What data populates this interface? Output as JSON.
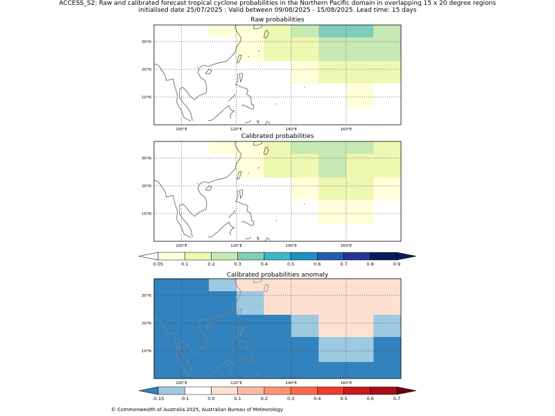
{
  "header": {
    "line1": "ACCESS_S2: Raw and calibrated forecast tropical cyclone probabilities in the Northern Pacific domain in overlapping 15 x 20 degree regions",
    "line2": "initialised date 25/07/2025 :  Valid between 09/08/2025 - 15/08/2025. Lead time: 15 days"
  },
  "copyright": "© Commonwealth of Australia 2025, Australian Bureau of Meteorology",
  "chart_data": [
    {
      "type": "heatmap",
      "title": "Raw probabilities",
      "lon_range": [
        90,
        180
      ],
      "lat_range": [
        0,
        36
      ],
      "x_ticks": [
        100,
        120,
        140,
        160
      ],
      "x_tick_labels": [
        "100°E",
        "120°E",
        "140°E",
        "160°E"
      ],
      "y_ticks": [
        10,
        20,
        30
      ],
      "y_tick_labels": [
        "10°N",
        "20°N",
        "30°N"
      ],
      "grid": true,
      "cells": [
        {
          "lon": [
            110,
            120
          ],
          "lat": [
            31.5,
            36
          ],
          "v": 0.07
        },
        {
          "lon": [
            120,
            130
          ],
          "lat": [
            31.5,
            36
          ],
          "v": 0.07
        },
        {
          "lon": [
            130,
            140
          ],
          "lat": [
            31.5,
            36
          ],
          "v": 0.12
        },
        {
          "lon": [
            140,
            150
          ],
          "lat": [
            31.5,
            36
          ],
          "v": 0.25
        },
        {
          "lon": [
            150,
            160
          ],
          "lat": [
            31.5,
            36
          ],
          "v": 0.33
        },
        {
          "lon": [
            160,
            170
          ],
          "lat": [
            31.5,
            36
          ],
          "v": 0.33
        },
        {
          "lon": [
            170,
            180
          ],
          "lat": [
            31.5,
            36
          ],
          "v": 0.23
        },
        {
          "lon": [
            120,
            130
          ],
          "lat": [
            23,
            31.5
          ],
          "v": 0.07
        },
        {
          "lon": [
            130,
            140
          ],
          "lat": [
            23,
            31.5
          ],
          "v": 0.13
        },
        {
          "lon": [
            140,
            150
          ],
          "lat": [
            23,
            31.5
          ],
          "v": 0.14
        },
        {
          "lon": [
            150,
            180
          ],
          "lat": [
            23,
            31.5
          ],
          "v": 0.23
        },
        {
          "lon": [
            140,
            150
          ],
          "lat": [
            15,
            23
          ],
          "v": 0.07
        },
        {
          "lon": [
            150,
            180
          ],
          "lat": [
            15,
            23
          ],
          "v": 0.13
        },
        {
          "lon": [
            160,
            170
          ],
          "lat": [
            6,
            15
          ],
          "v": 0.07
        }
      ]
    },
    {
      "type": "heatmap",
      "title": "Calibrated probabilities",
      "lon_range": [
        90,
        180
      ],
      "lat_range": [
        0,
        36
      ],
      "x_ticks": [
        100,
        120,
        140,
        160
      ],
      "x_tick_labels": [
        "100°E",
        "120°E",
        "140°E",
        "160°E"
      ],
      "y_ticks": [
        10,
        20,
        30
      ],
      "y_tick_labels": [
        "10°N",
        "20°N",
        "30°N"
      ],
      "grid": true,
      "cells": [
        {
          "lon": [
            110,
            120
          ],
          "lat": [
            31.5,
            36
          ],
          "v": 0.07
        },
        {
          "lon": [
            120,
            130
          ],
          "lat": [
            31.5,
            36
          ],
          "v": 0.07
        },
        {
          "lon": [
            130,
            140
          ],
          "lat": [
            31.5,
            36
          ],
          "v": 0.13
        },
        {
          "lon": [
            140,
            150
          ],
          "lat": [
            31.5,
            36
          ],
          "v": 0.23
        },
        {
          "lon": [
            150,
            170
          ],
          "lat": [
            31.5,
            36
          ],
          "v": 0.23
        },
        {
          "lon": [
            170,
            180
          ],
          "lat": [
            31.5,
            36
          ],
          "v": 0.13
        },
        {
          "lon": [
            120,
            130
          ],
          "lat": [
            23,
            31.5
          ],
          "v": 0.07
        },
        {
          "lon": [
            130,
            150
          ],
          "lat": [
            23,
            31.5
          ],
          "v": 0.13
        },
        {
          "lon": [
            150,
            160
          ],
          "lat": [
            23,
            31.5
          ],
          "v": 0.23
        },
        {
          "lon": [
            160,
            180
          ],
          "lat": [
            23,
            31.5
          ],
          "v": 0.13
        },
        {
          "lon": [
            140,
            150
          ],
          "lat": [
            15,
            23
          ],
          "v": 0.07
        },
        {
          "lon": [
            150,
            170
          ],
          "lat": [
            15,
            23
          ],
          "v": 0.13
        },
        {
          "lon": [
            170,
            180
          ],
          "lat": [
            15,
            23
          ],
          "v": 0.07
        },
        {
          "lon": [
            150,
            170
          ],
          "lat": [
            6,
            15
          ],
          "v": 0.07
        }
      ]
    },
    {
      "type": "heatmap",
      "title": "Calibrated probabilities anomaly",
      "lon_range": [
        90,
        180
      ],
      "lat_range": [
        0,
        36
      ],
      "x_ticks": [
        100,
        120,
        140,
        160
      ],
      "x_tick_labels": [
        "100°E",
        "120°E",
        "140°E",
        "160°E"
      ],
      "y_ticks": [
        10,
        20,
        30
      ],
      "y_tick_labels": [
        "10°N",
        "20°N",
        "30°N"
      ],
      "grid": true,
      "background_value": -0.16,
      "cells": [
        {
          "lon": [
            110,
            120
          ],
          "lat": [
            31.5,
            36
          ],
          "v": -0.12
        },
        {
          "lon": [
            120,
            170
          ],
          "lat": [
            31.5,
            36
          ],
          "v": 0.0
        },
        {
          "lon": [
            140,
            170
          ],
          "lat": [
            31.5,
            36
          ],
          "v": 0.02
        },
        {
          "lon": [
            170,
            180
          ],
          "lat": [
            31.5,
            36
          ],
          "v": 0.0
        },
        {
          "lon": [
            120,
            130
          ],
          "lat": [
            23,
            31.5
          ],
          "v": -0.12
        },
        {
          "lon": [
            130,
            180
          ],
          "lat": [
            23,
            31.5
          ],
          "v": 0.0
        },
        {
          "lon": [
            150,
            160
          ],
          "lat": [
            23,
            31.5
          ],
          "v": 0.02
        },
        {
          "lon": [
            140,
            170
          ],
          "lat": [
            15,
            23
          ],
          "v": 0.0
        },
        {
          "lon": [
            140,
            150
          ],
          "lat": [
            15,
            23
          ],
          "v": -0.12
        },
        {
          "lon": [
            170,
            180
          ],
          "lat": [
            15,
            23
          ],
          "v": -0.12
        },
        {
          "lon": [
            150,
            170
          ],
          "lat": [
            6,
            15
          ],
          "v": -0.12
        }
      ]
    }
  ],
  "colorbars": [
    {
      "name": "probability",
      "boundaries": [
        0.05,
        0.1,
        0.2,
        0.3,
        0.4,
        0.5,
        0.6,
        0.7,
        0.8,
        0.9
      ],
      "tick_labels": [
        "0.05",
        "0.1",
        "0.2",
        "0.3",
        "0.4",
        "0.5",
        "0.6",
        "0.7",
        "0.8",
        "0.9"
      ],
      "under_color": "#ffffff",
      "over_color": "#081d58",
      "colors": [
        "#ffffd9",
        "#edf8b1",
        "#c7e9b4",
        "#7fcdbb",
        "#41b6c4",
        "#1d91c0",
        "#225ea8",
        "#253494",
        "#081d58"
      ]
    },
    {
      "name": "anomaly",
      "boundaries": [
        -0.15,
        -0.1,
        0.0,
        0.1,
        0.2,
        0.3,
        0.4,
        0.5,
        0.6,
        0.7
      ],
      "tick_labels": [
        "-0.15",
        "-0.1",
        "0.0",
        "0.1",
        "0.2",
        "0.3",
        "0.4",
        "0.5",
        "0.6",
        "0.7"
      ],
      "under_color": "#3182bd",
      "over_color": "#67000d",
      "colors": [
        "#9ecae1",
        "#ffffff",
        "#fee0d2",
        "#fcbba1",
        "#fc9272",
        "#fb6a4a",
        "#ef3b2c",
        "#cb181d",
        "#a50f15"
      ]
    }
  ]
}
